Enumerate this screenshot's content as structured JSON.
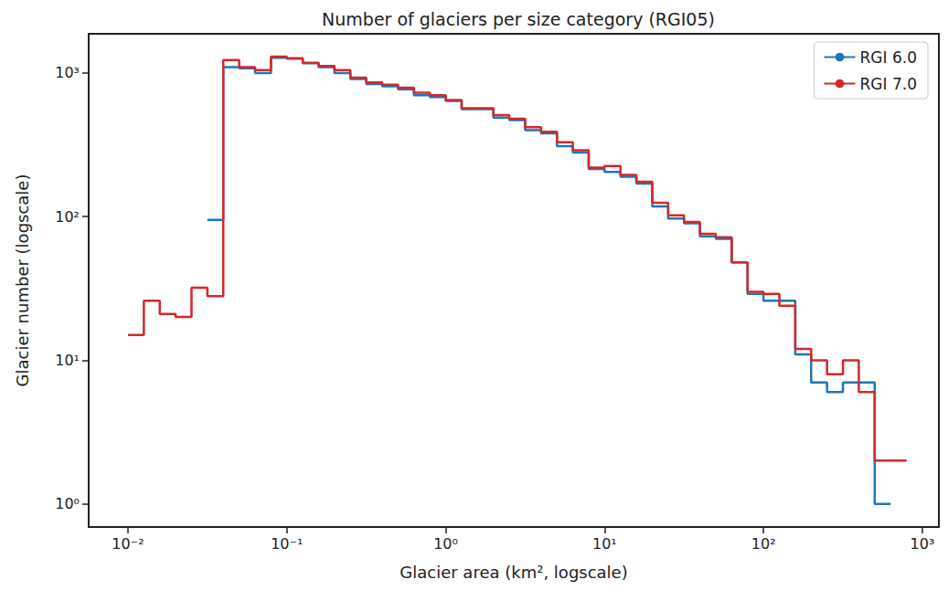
{
  "chart_data": {
    "type": "step",
    "title": "Number of glaciers per size category (RGI05)",
    "x_label": "Glacier area (km², logscale)",
    "y_label": "Glacier number (logscale)",
    "bins": [
      0.01,
      0.01259,
      0.01585,
      0.01995,
      0.02512,
      0.03162,
      0.03981,
      0.05012,
      0.0631,
      0.07943,
      0.1,
      0.1259,
      0.1585,
      0.1995,
      0.2512,
      0.3162,
      0.3981,
      0.5012,
      0.631,
      0.7943,
      1,
      1.259,
      1.585,
      1.995,
      2.512,
      3.162,
      3.981,
      5.012,
      6.31,
      7.943,
      10,
      12.59,
      15.85,
      19.95,
      25.12,
      31.62,
      39.81,
      50.12,
      63.1,
      79.43,
      100,
      125.9,
      158.5,
      199.5,
      251.2,
      316.2,
      398.1,
      501.2,
      631,
      794.3
    ],
    "series": [
      {
        "name": "RGI 6.0",
        "color": "#1f77b4",
        "values": [
          null,
          null,
          null,
          null,
          null,
          95,
          1100,
          1080,
          1000,
          1280,
          1260,
          1170,
          1100,
          1000,
          910,
          840,
          810,
          770,
          700,
          680,
          640,
          560,
          560,
          490,
          470,
          400,
          380,
          310,
          280,
          215,
          205,
          190,
          170,
          118,
          97,
          90,
          73,
          70,
          48,
          29,
          26,
          26,
          11,
          7,
          6,
          7,
          7,
          1,
          null
        ]
      },
      {
        "name": "RGI 7.0",
        "color": "#d62728",
        "values": [
          15,
          26,
          21,
          20,
          32,
          28,
          1230,
          1100,
          1050,
          1300,
          1270,
          1180,
          1120,
          1050,
          930,
          860,
          830,
          790,
          730,
          700,
          650,
          570,
          570,
          510,
          480,
          420,
          390,
          330,
          290,
          220,
          225,
          195,
          175,
          125,
          102,
          92,
          76,
          72,
          48,
          30,
          29,
          24,
          12,
          10,
          8,
          10,
          6,
          2,
          2
        ]
      }
    ],
    "log": true,
    "xlim": [
      0.00566,
      1270
    ],
    "ylim": [
      0.69,
      1877
    ],
    "xticks": [
      {
        "value": 0.01,
        "label": "10⁻²"
      },
      {
        "value": 0.1,
        "label": "10⁻¹"
      },
      {
        "value": 1,
        "label": "10⁰"
      },
      {
        "value": 10,
        "label": "10¹"
      },
      {
        "value": 100,
        "label": "10²"
      },
      {
        "value": 1000,
        "label": "10³"
      }
    ],
    "yticks": [
      {
        "value": 1,
        "label": "10⁰"
      },
      {
        "value": 10,
        "label": "10¹"
      },
      {
        "value": 100,
        "label": "10²"
      },
      {
        "value": 1000,
        "label": "10³"
      }
    ],
    "grid": false,
    "legend": "upper right"
  }
}
